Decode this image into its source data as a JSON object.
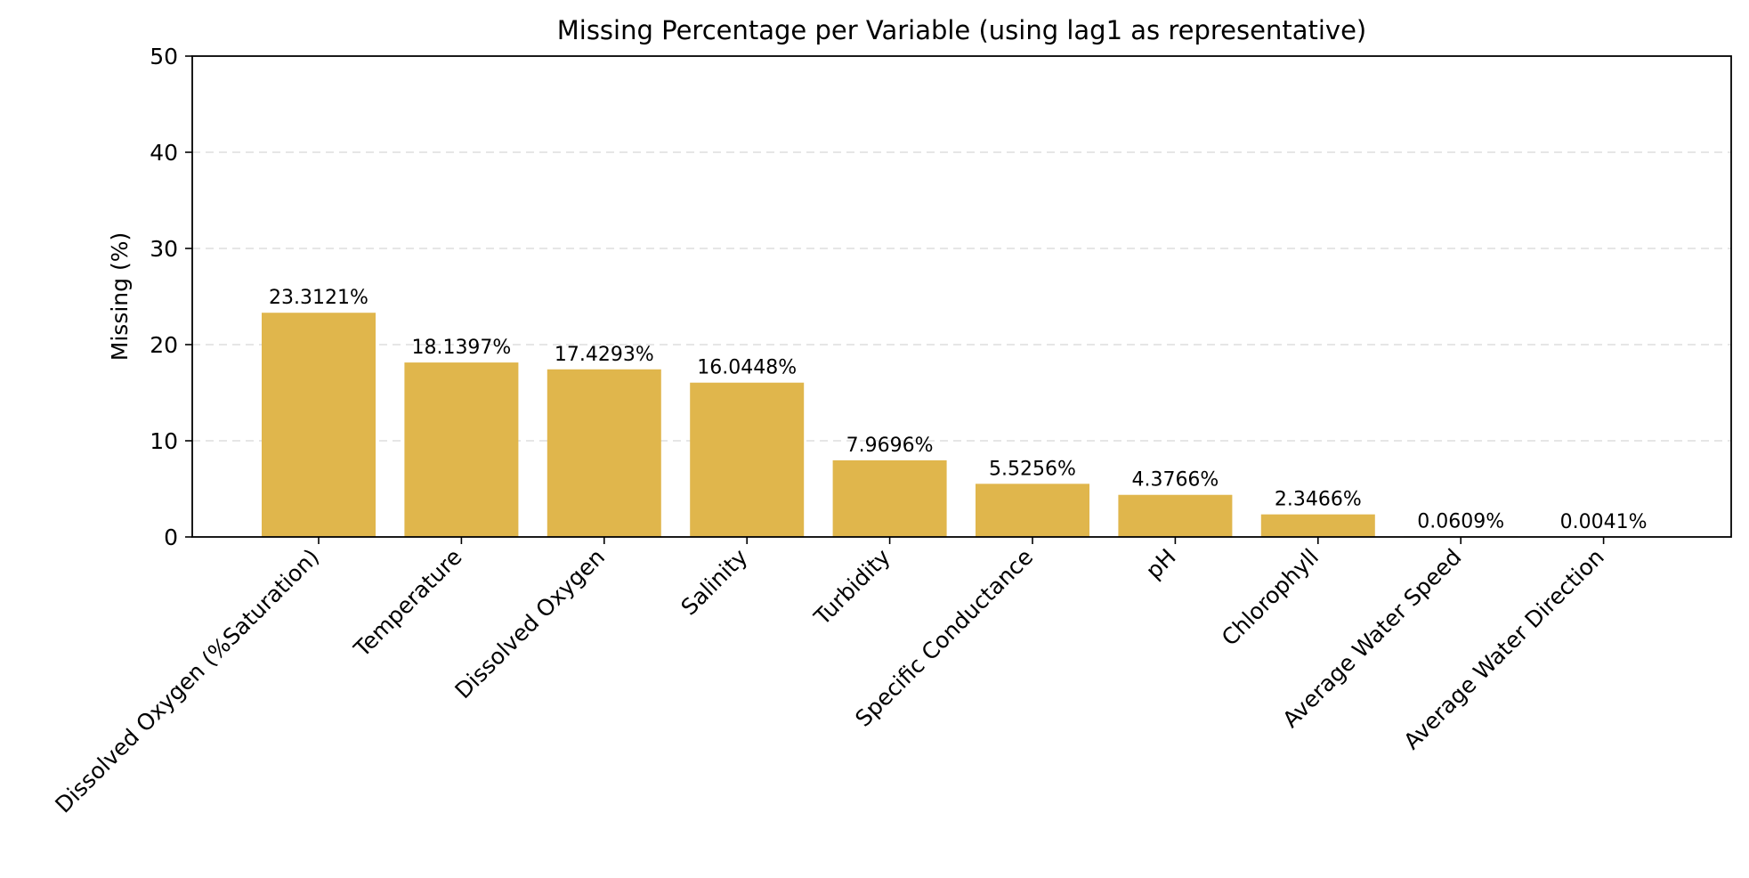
{
  "chart_data": {
    "type": "bar",
    "title": "Missing Percentage per Variable (using lag1 as representative)",
    "xlabel": "",
    "ylabel": "Missing (%)",
    "ylim": [
      0,
      50
    ],
    "yticks": [
      0,
      10,
      20,
      30,
      40,
      50
    ],
    "grid": "y-dashed",
    "bar_color": "#e0b64c",
    "categories": [
      "Dissolved Oxygen (%Saturation)",
      "Temperature",
      "Dissolved Oxygen",
      "Salinity",
      "Turbidity",
      "Specific Conductance",
      "pH",
      "Chlorophyll",
      "Average Water Speed",
      "Average Water Direction"
    ],
    "values": [
      23.3121,
      18.1397,
      17.4293,
      16.0448,
      7.9696,
      5.5256,
      4.3766,
      2.3466,
      0.0609,
      0.0041
    ],
    "data_labels": [
      "23.3121%",
      "18.1397%",
      "17.4293%",
      "16.0448%",
      "7.9696%",
      "5.5256%",
      "4.3766%",
      "2.3466%",
      "0.0609%",
      "0.0041%"
    ]
  }
}
